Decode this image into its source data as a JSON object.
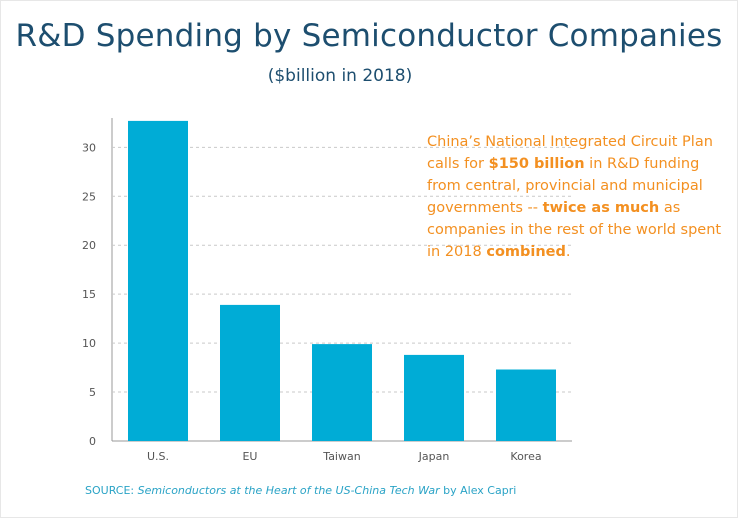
{
  "title": "R&D Spending by Semiconductor Companies",
  "subtitle": "($billion in 2018)",
  "note": {
    "t1": "China’s National Integrated Circuit Plan calls for ",
    "b1": "$150 billion",
    "t2": " in R&D funding from central, provincial and municipal governments -- ",
    "b2": "twice as much",
    "t3": " as companies in the rest of the world spent in 2018 ",
    "b3": "combined",
    "t4": "."
  },
  "source": {
    "prefix": "SOURCE: ",
    "work": "Semiconductors at the Heart of the US-China Tech War",
    "suffix": " by Alex Capri"
  },
  "colors": {
    "bar": "#00acd6",
    "title": "#1d4e6f",
    "note": "#f39021",
    "source": "#2aa3c6"
  },
  "chart_data": {
    "type": "bar",
    "title": "R&D Spending by Semiconductor Companies",
    "subtitle": "($billion in 2018)",
    "xlabel": "",
    "ylabel": "",
    "categories": [
      "U.S.",
      "EU",
      "Taiwan",
      "Japan",
      "Korea"
    ],
    "values": [
      32.7,
      13.9,
      9.9,
      8.8,
      7.3
    ],
    "ylim": [
      0,
      33
    ],
    "yticks": [
      0,
      5,
      10,
      15,
      20,
      25,
      30
    ],
    "grid": true,
    "legend": "none"
  }
}
